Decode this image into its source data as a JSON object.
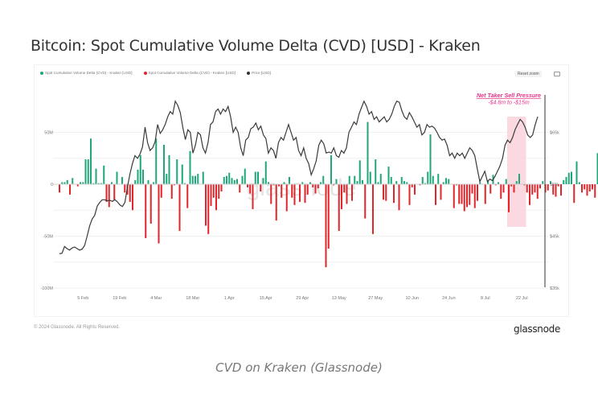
{
  "header": {
    "title": "Bitcoin: Spot Cumulative Volume Delta (CVD) [USD] - Kraken"
  },
  "toolbar": {
    "reset_zoom_label": "Reset zoom",
    "camera_icon": "camera-icon"
  },
  "legend": [
    {
      "label": "Spot Cumulative Volume Delta (CVD) - Kraken [USD]",
      "color": "#1fa77a"
    },
    {
      "label": "Spot Cumulative Volume Delta (CVD) - Kraken [USD]",
      "color": "#e0262b"
    },
    {
      "label": "Price [USD]",
      "color": "#333333"
    }
  ],
  "footer": {
    "copyright": "© 2024 Glassnode. All Rights Reserved.",
    "brand": "glassnode",
    "watermark": "glassnode"
  },
  "caption": "CVD on Kraken (Glassnode)",
  "chart_data": {
    "type": "bar",
    "title": "Bitcoin: Spot Cumulative Volume Delta (CVD) [USD] - Kraken",
    "x_tick_labels": [
      "5 Feb",
      "19 Feb",
      "4 Mar",
      "18 Mar",
      "1 Apr",
      "15 Apr",
      "29 Apr",
      "13 May",
      "27 May",
      "10 Jun",
      "24 Jun",
      "8 Jul",
      "22 Jul"
    ],
    "y_left": {
      "tick_labels": [
        "50M",
        "0",
        "-50M",
        "-100M"
      ],
      "ticks": [
        50,
        0,
        -50,
        -100
      ],
      "range": [
        -100,
        75
      ],
      "unit": "M USD"
    },
    "y_right": {
      "tick_labels": [
        "$65k",
        "$55k",
        "$45k",
        "$35k"
      ],
      "ticks": [
        65,
        55,
        45,
        35
      ],
      "range": [
        35,
        72
      ],
      "unit": "k USD"
    },
    "grid": true,
    "legend_position": "top-left",
    "colors": {
      "positive": "#1fa77a",
      "negative": "#e0262b",
      "price": "#3a3a3a",
      "highlight": "#f9d3da",
      "annotation": "#e8338a"
    },
    "start_date": "27 Jan",
    "days": 182,
    "series": [
      {
        "name": "Spot Cumulative Volume Delta (CVD) - Kraken [USD]",
        "values": [
          -8,
          2,
          2,
          4,
          -10,
          6,
          0,
          -2,
          2,
          2,
          24,
          24,
          44,
          1,
          15,
          1,
          1,
          18,
          -17,
          -22,
          2,
          -15,
          12,
          0,
          7,
          -8,
          -10,
          -17,
          -25,
          4,
          14,
          28,
          14,
          -52,
          4,
          -38,
          2,
          44,
          -57,
          -13,
          38,
          10,
          28,
          -14,
          -1,
          24,
          -45,
          19,
          1,
          -23,
          32,
          8,
          8,
          10,
          0,
          12,
          -40,
          -48,
          -21,
          -13,
          -25,
          -14,
          -7,
          7,
          8,
          11,
          6,
          4,
          5,
          -8,
          8,
          15,
          -3,
          -9,
          -24,
          12,
          12,
          -7,
          6,
          22,
          2,
          -19,
          -1,
          -35,
          -2,
          -13,
          2,
          -26,
          7,
          -13,
          -20,
          0,
          -17,
          2,
          -18,
          -10,
          2,
          -3,
          -9,
          -4,
          2,
          8,
          -80,
          -62,
          28,
          -1,
          5,
          -45,
          -24,
          -8,
          -19,
          8,
          -16,
          8,
          3,
          23,
          4,
          -33,
          60,
          12,
          -48,
          24,
          2,
          10,
          -15,
          -16,
          17,
          7,
          -18,
          3,
          -25,
          7,
          3,
          2,
          -20,
          -3,
          -10,
          0,
          -1,
          7,
          1,
          12,
          48,
          8,
          -20,
          10,
          -15,
          2,
          6,
          5,
          0,
          -23,
          -1,
          -19,
          -19,
          -26,
          -22,
          -20,
          -9,
          -23,
          -16,
          2,
          0,
          -19,
          4,
          -9,
          9,
          -1,
          2,
          -14,
          -8,
          5,
          -27,
          -2,
          -8,
          3,
          10,
          0,
          -1,
          -8,
          -20,
          -10,
          -8,
          -14,
          -4,
          3,
          -8,
          -6,
          3,
          -10,
          -12,
          -2,
          -11,
          4,
          7,
          11,
          12,
          -18,
          22,
          2,
          -8,
          -5,
          -11,
          -7,
          -5,
          -13,
          30
        ]
      },
      {
        "name": "Price [USD]",
        "unit": "k USD",
        "values": [
          41.6,
          41.7,
          43.0,
          42.6,
          42.3,
          42.7,
          42.9,
          42.6,
          42.3,
          42.5,
          43.2,
          45.0,
          47.0,
          48.3,
          49.0,
          50.8,
          51.5,
          52.0,
          52.0,
          51.8,
          51.9,
          51.7,
          52.0,
          51.6,
          51.0,
          50.7,
          51.5,
          54.5,
          57.0,
          59.0,
          60.5,
          60.0,
          60.8,
          62.2,
          66.0,
          63.0,
          61.5,
          62.0,
          63.2,
          66.5,
          64.8,
          65.5,
          66.5,
          68.0,
          69.0,
          68.5,
          71.0,
          70.2,
          68.8,
          66.0,
          63.6,
          65.5,
          65.0,
          61.0,
          62.5,
          65.0,
          64.5,
          62.0,
          61.0,
          63.0,
          66.5,
          67.0,
          69.0,
          69.5,
          68.5,
          69.5,
          69.0,
          70.0,
          68.0,
          65.0,
          66.0,
          65.0,
          62.0,
          60.5,
          63.5,
          64.0,
          65.7,
          66.0,
          66.8,
          65.5,
          66.2,
          64.5,
          63.8,
          61.0,
          62.0,
          61.5,
          60.0,
          63.0,
          64.0,
          63.5,
          65.0,
          66.5,
          65.0,
          63.5,
          64.0,
          61.5,
          60.5,
          62.0,
          60.0,
          59.0,
          56.8,
          58.0,
          59.5,
          62.5,
          63.5,
          62.8,
          61.0,
          61.2,
          61.0,
          62.0,
          60.5,
          60.2,
          61.5,
          61.0,
          62.0,
          65.0,
          66.0,
          67.0,
          66.5,
          68.5,
          69.8,
          71.0,
          70.0,
          68.5,
          69.0,
          67.5,
          68.0,
          67.0,
          67.5,
          68.0,
          67.0,
          67.5,
          68.5,
          70.0,
          71.0,
          70.8,
          69.2,
          68.0,
          67.5,
          68.8,
          68.0,
          67.0,
          66.0,
          66.5,
          64.5,
          65.0,
          66.5,
          66.0,
          66.2,
          65.8,
          65.0,
          64.0,
          63.5,
          63.7,
          62.5,
          60.5,
          61.0,
          60.0,
          61.0,
          60.5,
          61.0,
          60.0,
          61.0,
          62.0,
          61.5,
          60.5,
          58.0,
          55.5,
          56.5,
          57.5,
          55.5,
          56.0,
          55.7,
          56.5,
          57.5,
          58.5,
          60.0,
          62.5,
          63.5,
          63.0,
          64.0,
          65.5,
          66.5,
          67.5,
          67.0,
          66.0,
          64.5,
          64.0,
          64.5,
          66.5,
          68.0
        ]
      }
    ],
    "annotation": {
      "title": "Net Taker Sell Pressure",
      "subtitle": "-$4.8m to -$15m",
      "range_start": "17 Jul",
      "range_end": "24 Jul"
    }
  }
}
